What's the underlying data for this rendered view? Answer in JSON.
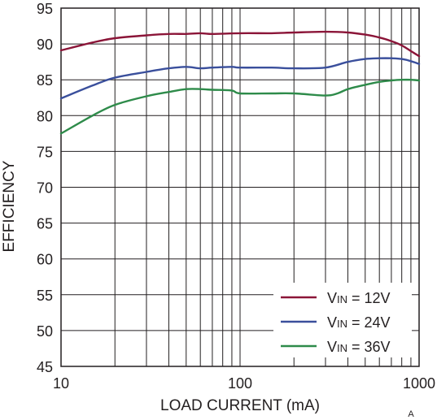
{
  "chart_data": {
    "type": "line",
    "xlabel": "LOAD CURRENT (mA)",
    "ylabel": "EFFICIENCY",
    "x_scale": "log",
    "xlim": [
      10,
      1000
    ],
    "ylim": [
      45,
      95
    ],
    "grid": true,
    "legend_position": "bottom-right",
    "x_ticks": [
      "10",
      "100",
      "1000"
    ],
    "y_ticks": [
      "95",
      "90",
      "85",
      "80",
      "75",
      "70",
      "65",
      "60",
      "55",
      "50",
      "45"
    ],
    "corner_mark": "A",
    "series": [
      {
        "label_main": "V",
        "label_sub": "IN",
        "label_rest": " = 12V",
        "color": "#8b1538",
        "points": [
          [
            10,
            89.1
          ],
          [
            15,
            90.2
          ],
          [
            20,
            90.8
          ],
          [
            30,
            91.2
          ],
          [
            40,
            91.4
          ],
          [
            50,
            91.4
          ],
          [
            60,
            91.5
          ],
          [
            70,
            91.4
          ],
          [
            100,
            91.5
          ],
          [
            150,
            91.5
          ],
          [
            200,
            91.6
          ],
          [
            300,
            91.7
          ],
          [
            400,
            91.6
          ],
          [
            500,
            91.3
          ],
          [
            600,
            90.9
          ],
          [
            700,
            90.4
          ],
          [
            800,
            89.8
          ],
          [
            900,
            89.0
          ],
          [
            1000,
            88.3
          ]
        ]
      },
      {
        "label_main": "V",
        "label_sub": "IN",
        "label_rest": " = 24V",
        "color": "#3a4f9c",
        "points": [
          [
            10,
            82.4
          ],
          [
            15,
            84.2
          ],
          [
            20,
            85.3
          ],
          [
            30,
            86.1
          ],
          [
            40,
            86.6
          ],
          [
            50,
            86.8
          ],
          [
            60,
            86.6
          ],
          [
            70,
            86.7
          ],
          [
            90,
            86.8
          ],
          [
            100,
            86.7
          ],
          [
            150,
            86.7
          ],
          [
            200,
            86.6
          ],
          [
            300,
            86.7
          ],
          [
            400,
            87.5
          ],
          [
            500,
            87.9
          ],
          [
            600,
            88.0
          ],
          [
            700,
            88.0
          ],
          [
            800,
            87.9
          ],
          [
            900,
            87.6
          ],
          [
            1000,
            87.2
          ]
        ]
      },
      {
        "label_main": "V",
        "label_sub": "IN",
        "label_rest": " = 36V",
        "color": "#2e8b4a",
        "points": [
          [
            10,
            77.5
          ],
          [
            15,
            80.0
          ],
          [
            20,
            81.5
          ],
          [
            30,
            82.7
          ],
          [
            40,
            83.3
          ],
          [
            50,
            83.7
          ],
          [
            60,
            83.7
          ],
          [
            70,
            83.6
          ],
          [
            90,
            83.5
          ],
          [
            100,
            83.1
          ],
          [
            150,
            83.1
          ],
          [
            200,
            83.1
          ],
          [
            300,
            82.8
          ],
          [
            350,
            83.1
          ],
          [
            400,
            83.7
          ],
          [
            500,
            84.3
          ],
          [
            600,
            84.7
          ],
          [
            700,
            84.9
          ],
          [
            800,
            85.0
          ],
          [
            900,
            85.0
          ],
          [
            1000,
            84.9
          ]
        ]
      }
    ]
  }
}
